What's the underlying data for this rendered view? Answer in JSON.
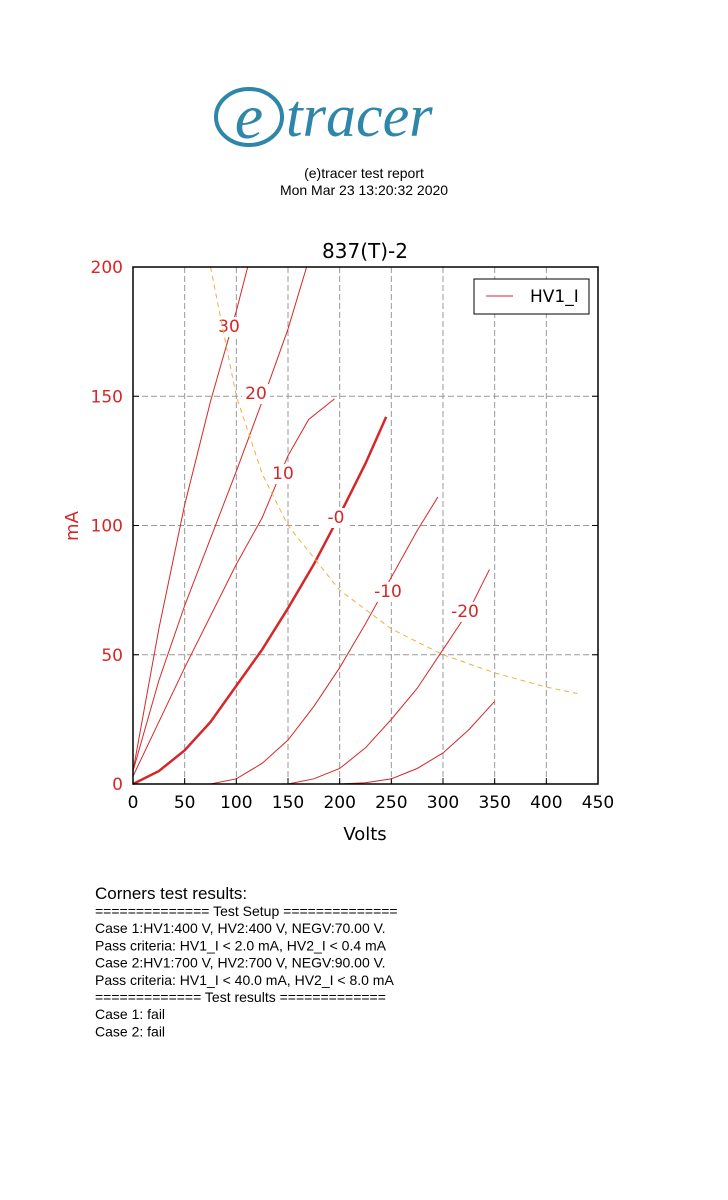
{
  "header": {
    "logo_mark": "e",
    "logo_text": "tracer",
    "title": "(e)tracer test report",
    "date": "Mon Mar 23 13:20:32 2020"
  },
  "chart_data": {
    "type": "line",
    "title": "837(T)-2",
    "x_label": "Volts",
    "y_label": "mA",
    "xlim": [
      0,
      450
    ],
    "xticks": [
      0,
      50,
      100,
      150,
      200,
      250,
      300,
      350,
      400,
      450
    ],
    "ylim": [
      0,
      200
    ],
    "yticks": [
      0,
      50,
      100,
      150,
      200
    ],
    "grid": true,
    "legend": "HV1_I",
    "legend_position": "upper right",
    "legend_color": "#d62728",
    "series": [
      {
        "label": "30",
        "color": "#d62728",
        "width": 1,
        "x": [
          0,
          25,
          50,
          75,
          100,
          111
        ],
        "values": [
          5,
          60,
          108,
          148,
          183,
          200
        ]
      },
      {
        "label": "20",
        "color": "#d62728",
        "width": 1,
        "x": [
          0,
          25,
          50,
          75,
          100,
          125,
          150,
          168
        ],
        "values": [
          5,
          40,
          69,
          95,
          121,
          148,
          176,
          200
        ]
      },
      {
        "label": "10",
        "color": "#d62728",
        "width": 1,
        "x": [
          0,
          50,
          100,
          125,
          150,
          170,
          195
        ],
        "values": [
          3,
          45,
          85,
          103,
          127,
          141,
          149
        ]
      },
      {
        "label": "-0",
        "color": "#d62728",
        "width": 2.5,
        "x": [
          0,
          25,
          50,
          75,
          100,
          125,
          150,
          175,
          200,
          225,
          245
        ],
        "values": [
          0,
          5,
          13,
          24,
          38,
          52,
          68,
          85,
          104,
          124,
          142
        ]
      },
      {
        "label": "-10",
        "color": "#d62728",
        "width": 1,
        "x": [
          75,
          100,
          125,
          150,
          175,
          200,
          225,
          250,
          275,
          295
        ],
        "values": [
          0,
          2,
          8,
          17,
          30,
          45,
          62,
          80,
          98,
          111
        ]
      },
      {
        "label": "-20",
        "color": "#d62728",
        "width": 1,
        "x": [
          150,
          175,
          200,
          225,
          250,
          275,
          300,
          325,
          345
        ],
        "values": [
          0,
          2,
          6,
          14,
          25,
          37,
          52,
          67,
          83
        ]
      },
      {
        "color": "#d62728",
        "width": 1,
        "x": [
          200,
          225,
          250,
          275,
          300,
          325,
          350
        ],
        "values": [
          0,
          0.5,
          2,
          6,
          12,
          21,
          32
        ]
      },
      {
        "color": "#f0b040",
        "width": 1,
        "dashed": true,
        "x": [
          75,
          100,
          125,
          150,
          200,
          250,
          300,
          350,
          400,
          430
        ],
        "values": [
          200,
          150,
          120,
          100,
          75,
          60,
          50,
          43,
          37.5,
          35
        ]
      }
    ]
  },
  "report": {
    "heading": "Corners test results:",
    "lines": [
      "============== Test Setup ==============",
      "Case 1:HV1:400 V, HV2:400 V, NEGV:70.00 V.",
      "Pass criteria: HV1_I < 2.0 mA, HV2_I < 0.4 mA",
      "Case 2:HV1:700 V, HV2:700 V, NEGV:90.00 V.",
      "Pass criteria: HV1_I < 40.0 mA, HV2_I < 8.0 mA",
      "============= Test results =============",
      "Case 1: fail",
      "Case 2: fail"
    ]
  }
}
